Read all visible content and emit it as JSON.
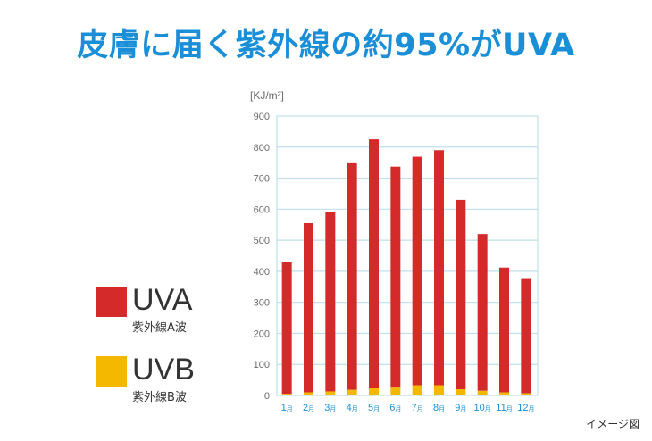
{
  "title": "皮膚に届く紫外線の約95%がUVA",
  "caption": "イメージ図",
  "colors": {
    "title": "#1a8fd8",
    "uva": "#d42a2a",
    "uvb": "#f5b800",
    "grid": "#bfe0ea",
    "axis_text": "#6a6a6a",
    "month_text": "#1a8fd8"
  },
  "legend": [
    {
      "key": "uva",
      "name": "UVA",
      "sub": "紫外線A波",
      "color": "#d42a2a"
    },
    {
      "key": "uvb",
      "name": "UVB",
      "sub": "紫外線B波",
      "color": "#f5b800"
    }
  ],
  "chart_data": {
    "type": "bar",
    "stacked": true,
    "unit_label": "[KJ/m²]",
    "ylim": [
      0,
      900
    ],
    "yticks": [
      0,
      100,
      200,
      300,
      400,
      500,
      600,
      700,
      800,
      900
    ],
    "grid": true,
    "categories": [
      "1月",
      "2月",
      "3月",
      "4月",
      "5月",
      "6月",
      "7月",
      "8月",
      "9月",
      "10月",
      "11月",
      "12月"
    ],
    "category_labels": [
      {
        "num": "1",
        "suffix": "月"
      },
      {
        "num": "2",
        "suffix": "月"
      },
      {
        "num": "3",
        "suffix": "月"
      },
      {
        "num": "4",
        "suffix": "月"
      },
      {
        "num": "5",
        "suffix": "月"
      },
      {
        "num": "6",
        "suffix": "月"
      },
      {
        "num": "7",
        "suffix": "月"
      },
      {
        "num": "8",
        "suffix": "月"
      },
      {
        "num": "9",
        "suffix": "月"
      },
      {
        "num": "10",
        "suffix": "月"
      },
      {
        "num": "11",
        "suffix": "月"
      },
      {
        "num": "12",
        "suffix": "月"
      }
    ],
    "series": [
      {
        "name": "UVB",
        "color": "#f5b800",
        "values": [
          5,
          10,
          13,
          18,
          23,
          25,
          33,
          33,
          20,
          15,
          10,
          7
        ]
      },
      {
        "name": "UVA",
        "color": "#d42a2a",
        "values": [
          425,
          545,
          578,
          730,
          802,
          712,
          736,
          757,
          610,
          505,
          402,
          371
        ]
      }
    ]
  }
}
